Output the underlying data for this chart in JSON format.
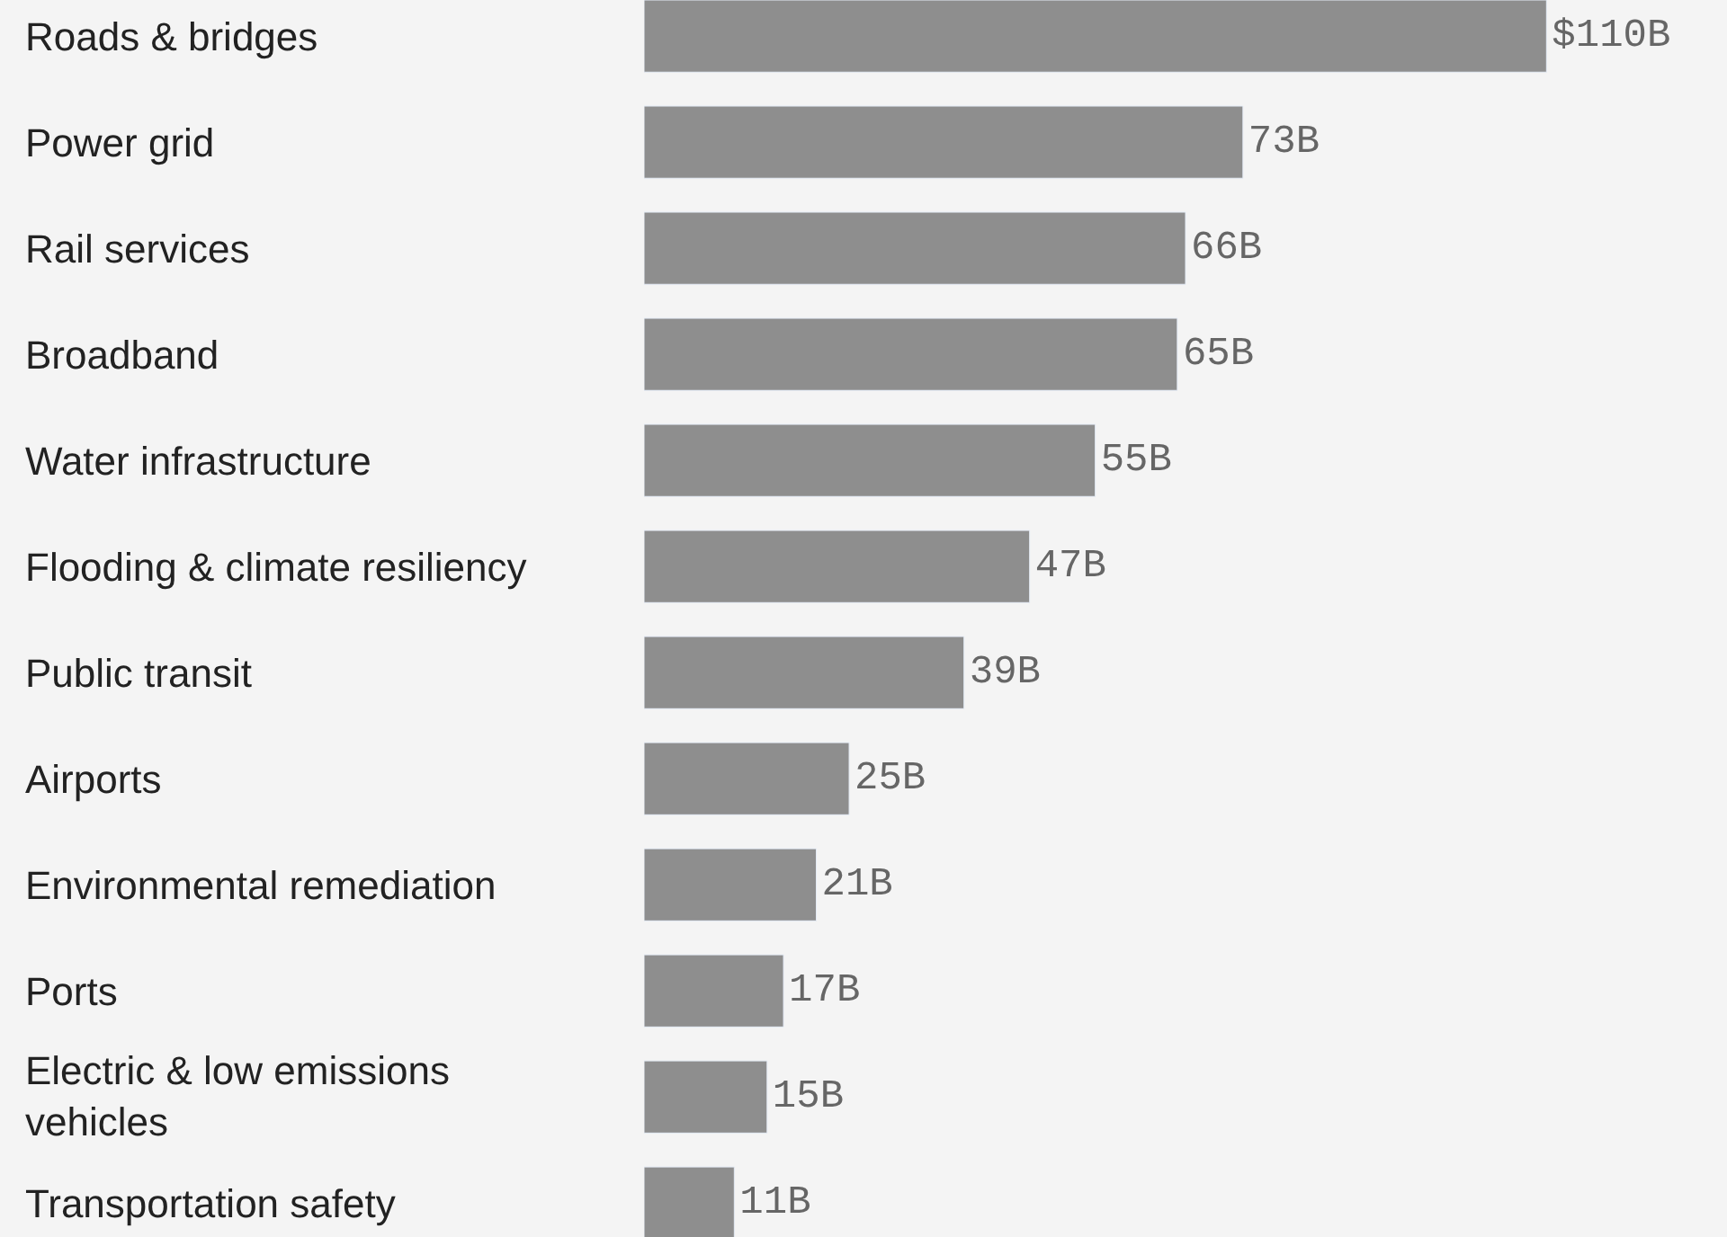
{
  "chart_data": {
    "type": "bar",
    "orientation": "horizontal",
    "categories": [
      "Roads & bridges",
      "Power grid",
      "Rail services",
      "Broadband",
      "Water infrastructure",
      "Flooding & climate resiliency",
      "Public transit",
      "Airports",
      "Environmental remediation",
      "Ports",
      "Electric & low emissions vehicles",
      "Transportation safety"
    ],
    "values": [
      110,
      73,
      66,
      65,
      55,
      47,
      39,
      25,
      21,
      17,
      15,
      11
    ],
    "value_labels": [
      "$110B",
      "73B",
      "66B",
      "65B",
      "55B",
      "47B",
      "39B",
      "25B",
      "21B",
      "17B",
      "15B",
      "11B"
    ],
    "color": "#8e8e8e",
    "xlim": [
      0,
      132
    ],
    "tick_labels": false,
    "grid": false,
    "legend": false
  }
}
